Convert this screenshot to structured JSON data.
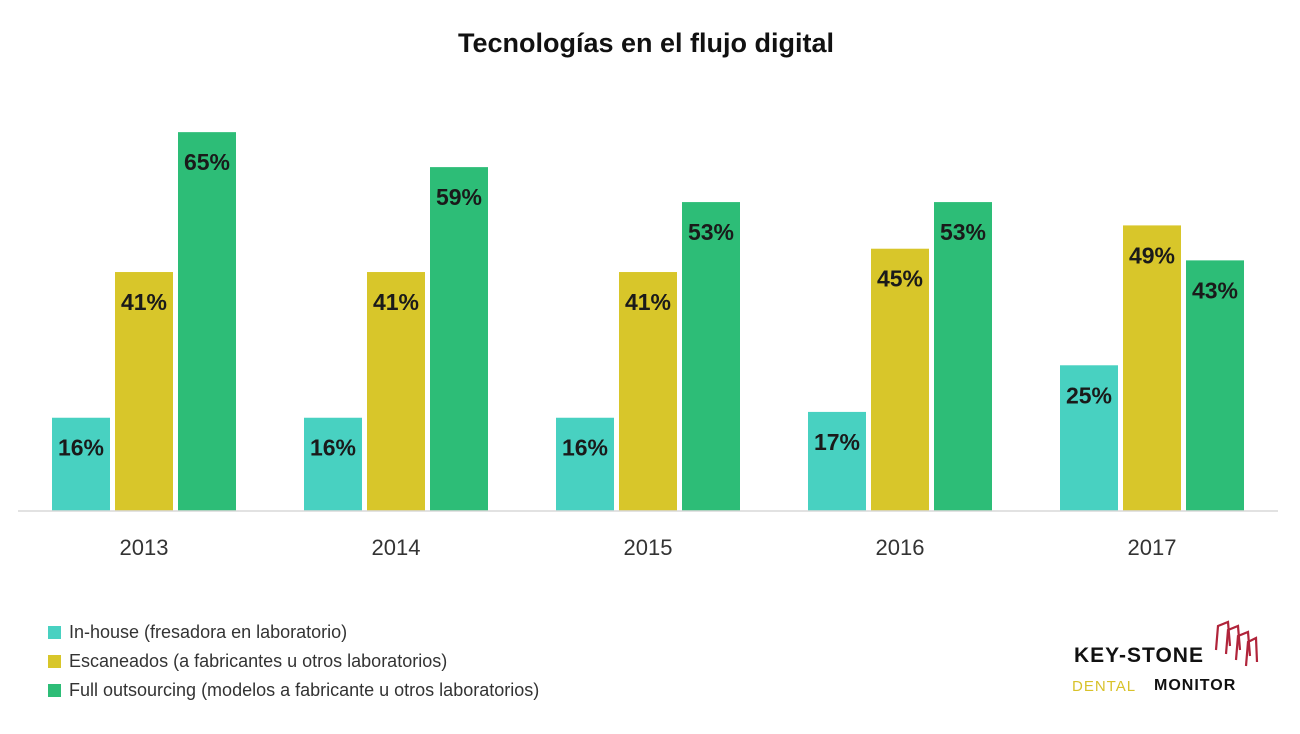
{
  "chart_data": {
    "type": "bar",
    "title": "Tecnologías en el flujo digital",
    "xlabel": "",
    "ylabel": "",
    "ylim": [
      0,
      70
    ],
    "grid": false,
    "legend_position": "bottom-left",
    "categories": [
      "2013",
      "2014",
      "2015",
      "2016",
      "2017"
    ],
    "series": [
      {
        "name": "In-house (fresadora en laboratorio)",
        "color": "#48d1c1",
        "values": [
          16,
          16,
          16,
          17,
          25
        ],
        "labels": [
          "16%",
          "16%",
          "16%",
          "17%",
          "25%"
        ]
      },
      {
        "name": "Escaneados (a fabricantes u otros laboratorios)",
        "color": "#d8c62a",
        "values": [
          41,
          41,
          41,
          45,
          49
        ],
        "labels": [
          "41%",
          "41%",
          "41%",
          "45%",
          "49%"
        ]
      },
      {
        "name": "Full outsourcing (modelos a fabricante u otros laboratorios)",
        "color": "#2dbd77",
        "values": [
          65,
          59,
          53,
          53,
          43
        ],
        "labels": [
          "65%",
          "59%",
          "53%",
          "53%",
          "43%"
        ]
      }
    ]
  },
  "logo": {
    "keystone": "KEY-STONE",
    "dental": "DENTAL",
    "monitor": "MONITOR",
    "arch_color": "#b0243a"
  }
}
